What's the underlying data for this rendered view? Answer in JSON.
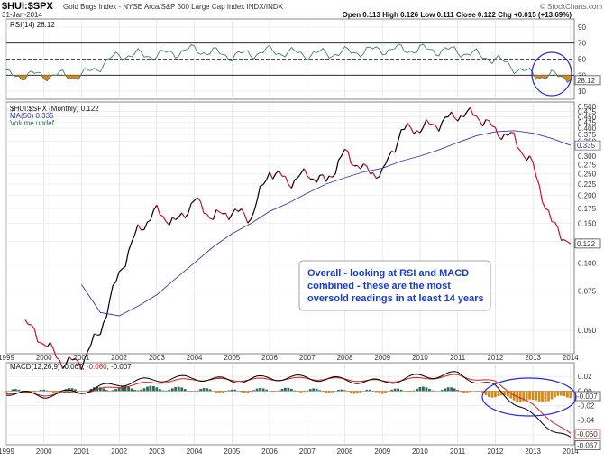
{
  "header": {
    "symbol": "$HUI:$SPX",
    "description": "Gold Bugs Index - NYSE Arca/S&P 500 Large Cap Index INDX/INDX",
    "date": "31-Jan-2014",
    "brand": "© StockCharts.com",
    "quote": "Open 0.113  High 0.126  Low 0.111  Close 0.122  Chg +0.015 (+13.69%)"
  },
  "rsi_panel": {
    "label": "RSI(14) 28.12",
    "current_value": "28.12",
    "ticks": [
      "90",
      "70",
      "50",
      "30",
      "10"
    ],
    "levels": [
      70,
      50,
      30
    ],
    "colors": {
      "line": "#4a7c6a",
      "above": "#2e6b55",
      "below": "#d28a1e"
    }
  },
  "price_panel": {
    "legend": [
      "$HUI:$SPX (Monthly) 0.122",
      "MA(50) 0.335",
      "Volume undef"
    ],
    "close_label": "0.122",
    "ma_label": "0.335",
    "ticks": [
      "0.500",
      "0.475",
      "0.450",
      "0.425",
      "0.400",
      "0.375",
      "0.350",
      "0.300",
      "0.275",
      "0.250",
      "0.225",
      "0.200",
      "0.175",
      "0.150",
      "0.125",
      "0.100",
      "0.075",
      "0.050"
    ],
    "annotation": "Overall - looking at RSI and MACD combined - these are the most oversold readings in at least 14 years",
    "colors": {
      "up": "#000000",
      "down": "#c8102e",
      "ma": "#3a3aa0",
      "annotation_text": "#1a3cc8"
    }
  },
  "macd_panel": {
    "label": "MACD(12,26,9) -0.067, -0.060, -0.007",
    "label_parts": [
      "MACD(12,26,9) -0.067, ",
      "-0.060",
      ", -0.007"
    ],
    "value_labels": [
      "-0.007",
      "-0.060",
      "-0.067"
    ],
    "ticks": [
      "0.02",
      "0.00",
      "-0.02",
      "-0.04",
      "-0.06"
    ],
    "colors": {
      "macd": "#000000",
      "signal": "#d02020",
      "hist_pos": "#2e6b55",
      "hist_neg": "#d28a1e"
    }
  },
  "x_axis": {
    "years": [
      "1999",
      "2000",
      "2001",
      "2002",
      "2003",
      "2004",
      "2005",
      "2006",
      "2007",
      "2008",
      "2009",
      "2010",
      "2011",
      "2012",
      "2013",
      "2014"
    ]
  },
  "chart_data": {
    "type": "line",
    "title": "$HUI:$SPX",
    "x": [
      "1999.5",
      "2000.0",
      "2000.5",
      "2001.0",
      "2001.5",
      "2002.0",
      "2002.5",
      "2003.0",
      "2003.5",
      "2004.0",
      "2004.5",
      "2005.0",
      "2005.5",
      "2006.0",
      "2006.5",
      "2007.0",
      "2007.5",
      "2008.0",
      "2008.5",
      "2009.0",
      "2009.5",
      "2010.0",
      "2010.5",
      "2011.0",
      "2011.5",
      "2012.0",
      "2012.5",
      "2013.0",
      "2013.5",
      "2014.0"
    ],
    "series": [
      {
        "name": "$HUI:$SPX (Monthly)",
        "values": [
          0.054,
          0.044,
          0.036,
          0.036,
          0.05,
          0.09,
          0.14,
          0.17,
          0.15,
          0.19,
          0.16,
          0.17,
          0.16,
          0.26,
          0.23,
          0.25,
          0.23,
          0.31,
          0.26,
          0.25,
          0.39,
          0.4,
          0.42,
          0.46,
          0.46,
          0.39,
          0.36,
          0.27,
          0.15,
          0.122
        ]
      },
      {
        "name": "MA(50)",
        "values": [
          null,
          null,
          null,
          0.08,
          0.06,
          0.058,
          0.064,
          0.072,
          0.085,
          0.1,
          0.118,
          0.135,
          0.15,
          0.17,
          0.185,
          0.205,
          0.225,
          0.24,
          0.255,
          0.265,
          0.285,
          0.3,
          0.32,
          0.345,
          0.37,
          0.385,
          0.39,
          0.38,
          0.36,
          0.335
        ]
      }
    ],
    "rsi": {
      "x": [
        "1999",
        "2000",
        "2001",
        "2002",
        "2003",
        "2004",
        "2005",
        "2006",
        "2007",
        "2008",
        "2009",
        "2010",
        "2011",
        "2012",
        "2013",
        "2014"
      ],
      "values": [
        30,
        30,
        29,
        55,
        55,
        62,
        54,
        60,
        56,
        58,
        62,
        62,
        60,
        50,
        30,
        28.12
      ]
    },
    "macd": {
      "x": [
        "1999",
        "2000",
        "2001",
        "2002",
        "2003",
        "2004",
        "2005",
        "2006",
        "2007",
        "2008",
        "2009",
        "2010",
        "2011",
        "2012",
        "2013",
        "2014"
      ],
      "macd": [
        -0.002,
        -0.006,
        0.0,
        0.01,
        0.016,
        0.018,
        0.014,
        0.018,
        0.018,
        0.015,
        0.012,
        0.02,
        0.023,
        0.005,
        -0.035,
        -0.067
      ],
      "signal": [
        -0.002,
        -0.005,
        -0.002,
        0.006,
        0.012,
        0.016,
        0.015,
        0.016,
        0.017,
        0.016,
        0.013,
        0.017,
        0.021,
        0.012,
        -0.02,
        -0.06
      ],
      "histogram": [
        0.0,
        -0.001,
        0.002,
        0.004,
        0.004,
        0.002,
        -0.001,
        0.002,
        0.001,
        -0.001,
        -0.001,
        0.003,
        0.002,
        -0.007,
        -0.015,
        -0.007
      ]
    },
    "rsi_ylim": [
      0,
      100
    ],
    "price_ylim": [
      0.04,
      0.5
    ],
    "price_scale": "log",
    "macd_ylim": [
      -0.07,
      0.035
    ],
    "grid": true
  }
}
